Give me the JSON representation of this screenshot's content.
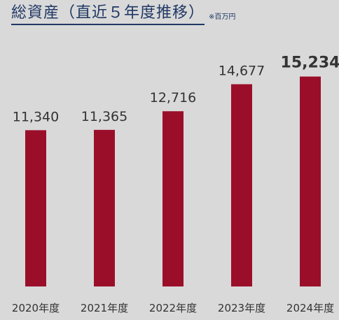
{
  "header": {
    "title": "総資産（直近５年度推移）",
    "unit": "※百万円"
  },
  "colors": {
    "bar": "#9b0e2a",
    "highlight_label": "#a3122e",
    "label": "#333333",
    "background": "#d9d9d9"
  },
  "chart_data": {
    "type": "bar",
    "title": "総資産（直近５年度推移）",
    "unit": "※百万円",
    "categories": [
      "2020年度",
      "2021年度",
      "2022年度",
      "2023年度",
      "2024年度"
    ],
    "values": [
      11340,
      11365,
      12716,
      14677,
      15234
    ],
    "value_labels": [
      "11,340",
      "11,365",
      "12,716",
      "14,677",
      "15,234"
    ],
    "highlight_index": 4,
    "xlabel": "",
    "ylabel": "",
    "ylim": [
      0,
      18000
    ],
    "grid": false,
    "legend": "none"
  }
}
